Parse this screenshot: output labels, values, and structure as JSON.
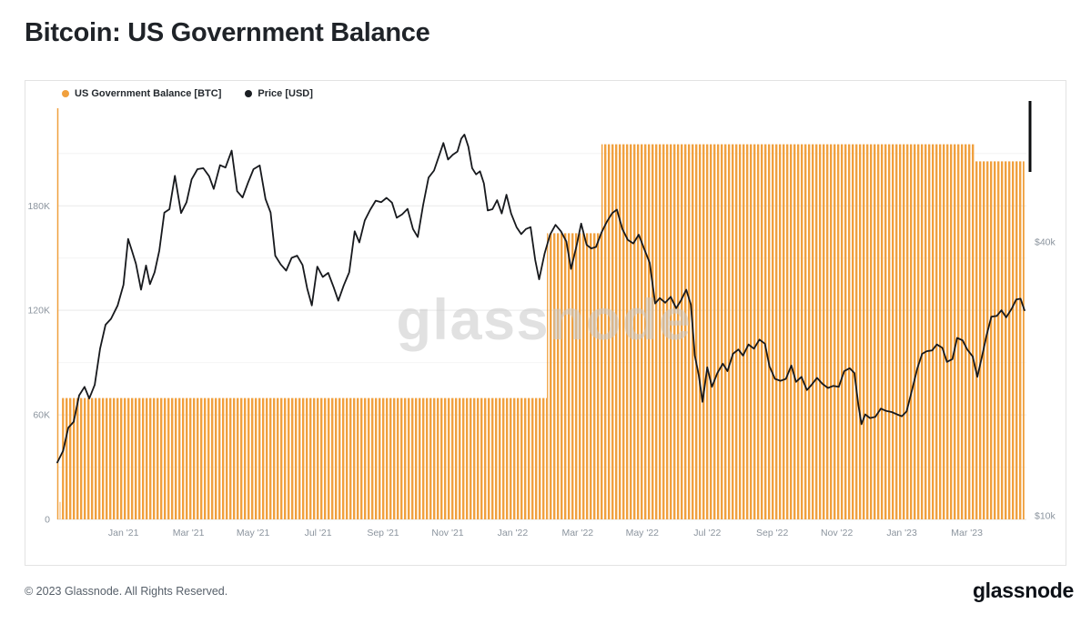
{
  "header": {
    "title": "Bitcoin: US Government Balance"
  },
  "watermark": "glassnode",
  "footer": {
    "copyright": "© 2023 Glassnode. All Rights Reserved.",
    "brand": "glassnode"
  },
  "legend": {
    "items": [
      {
        "label": "US Government Balance [BTC]",
        "color": "#F0A03E"
      },
      {
        "label": "Price [USD]",
        "color": "#1b1e23"
      }
    ]
  },
  "chart_data": {
    "type": "mixed",
    "title": "Bitcoin: US Government Balance",
    "x_axis": {
      "range": [
        2020.83,
        2023.32
      ],
      "ticks": [
        {
          "x": 2021.0,
          "label": "Jan '21"
        },
        {
          "x": 2021.167,
          "label": "Mar '21"
        },
        {
          "x": 2021.333,
          "label": "May '21"
        },
        {
          "x": 2021.5,
          "label": "Jul '21"
        },
        {
          "x": 2021.667,
          "label": "Sep '21"
        },
        {
          "x": 2021.833,
          "label": "Nov '21"
        },
        {
          "x": 2022.0,
          "label": "Jan '22"
        },
        {
          "x": 2022.167,
          "label": "Mar '22"
        },
        {
          "x": 2022.333,
          "label": "May '22"
        },
        {
          "x": 2022.5,
          "label": "Jul '22"
        },
        {
          "x": 2022.667,
          "label": "Sep '22"
        },
        {
          "x": 2022.833,
          "label": "Nov '22"
        },
        {
          "x": 2023.0,
          "label": "Jan '23"
        },
        {
          "x": 2023.167,
          "label": "Mar '23"
        }
      ]
    },
    "left_axis": {
      "label": "US Government Balance [BTC]",
      "range": [
        0,
        236000
      ],
      "ticks": [
        {
          "v": 0,
          "label": "0"
        },
        {
          "v": 60000,
          "label": "60K"
        },
        {
          "v": 120000,
          "label": "120K"
        },
        {
          "v": 180000,
          "label": "180K"
        }
      ],
      "gridlines_major": [
        60000,
        120000,
        180000
      ],
      "gridlines_minor": [
        30000,
        90000,
        150000,
        210000
      ]
    },
    "right_axis": {
      "label": "Price [USD]",
      "scale": "log",
      "range": [
        9817,
        78700
      ],
      "ticks": [
        {
          "v": 10000,
          "label": "$10k"
        },
        {
          "v": 40000,
          "label": "$40k"
        }
      ]
    },
    "series": [
      {
        "name": "US Government Balance [BTC]",
        "type": "step-bars",
        "axis": "left",
        "color": "#F0A03E",
        "steps": [
          {
            "x": 2020.836,
            "v": 10000
          },
          {
            "x": 2020.842,
            "v": 69640
          },
          {
            "x": 2022.088,
            "v": 164283
          },
          {
            "x": 2022.228,
            "v": 215338
          },
          {
            "x": 2023.187,
            "v": 205515
          }
        ],
        "end_x": 2023.315
      },
      {
        "name": "Price [USD]",
        "type": "line",
        "axis": "right",
        "color": "#17191d",
        "points": [
          [
            2020.83,
            13100
          ],
          [
            2020.845,
            13900
          ],
          [
            2020.858,
            15600
          ],
          [
            2020.872,
            16100
          ],
          [
            2020.886,
            18400
          ],
          [
            2020.9,
            19200
          ],
          [
            2020.912,
            18100
          ],
          [
            2020.926,
            19400
          ],
          [
            2020.94,
            23300
          ],
          [
            2020.954,
            26300
          ],
          [
            2020.968,
            27100
          ],
          [
            2020.985,
            29000
          ],
          [
            2021.0,
            32200
          ],
          [
            2021.012,
            40600
          ],
          [
            2021.022,
            38200
          ],
          [
            2021.032,
            35800
          ],
          [
            2021.045,
            31400
          ],
          [
            2021.058,
            35500
          ],
          [
            2021.068,
            32300
          ],
          [
            2021.08,
            34300
          ],
          [
            2021.092,
            38300
          ],
          [
            2021.105,
            46400
          ],
          [
            2021.118,
            47200
          ],
          [
            2021.132,
            55900
          ],
          [
            2021.148,
            46300
          ],
          [
            2021.162,
            48900
          ],
          [
            2021.175,
            54900
          ],
          [
            2021.19,
            57800
          ],
          [
            2021.205,
            58100
          ],
          [
            2021.22,
            55800
          ],
          [
            2021.232,
            52300
          ],
          [
            2021.248,
            59000
          ],
          [
            2021.262,
            58300
          ],
          [
            2021.278,
            63500
          ],
          [
            2021.292,
            51700
          ],
          [
            2021.306,
            50100
          ],
          [
            2021.32,
            54000
          ],
          [
            2021.334,
            57800
          ],
          [
            2021.35,
            58900
          ],
          [
            2021.365,
            49700
          ],
          [
            2021.378,
            46400
          ],
          [
            2021.39,
            37300
          ],
          [
            2021.404,
            35700
          ],
          [
            2021.418,
            34600
          ],
          [
            2021.432,
            36900
          ],
          [
            2021.446,
            37300
          ],
          [
            2021.46,
            35600
          ],
          [
            2021.472,
            31600
          ],
          [
            2021.484,
            29000
          ],
          [
            2021.498,
            35300
          ],
          [
            2021.512,
            33500
          ],
          [
            2021.526,
            34200
          ],
          [
            2021.54,
            31800
          ],
          [
            2021.552,
            29700
          ],
          [
            2021.566,
            32100
          ],
          [
            2021.58,
            34300
          ],
          [
            2021.594,
            42200
          ],
          [
            2021.606,
            39900
          ],
          [
            2021.62,
            44600
          ],
          [
            2021.634,
            47100
          ],
          [
            2021.648,
            49300
          ],
          [
            2021.662,
            48900
          ],
          [
            2021.676,
            50000
          ],
          [
            2021.69,
            48800
          ],
          [
            2021.702,
            45200
          ],
          [
            2021.716,
            46000
          ],
          [
            2021.73,
            47300
          ],
          [
            2021.744,
            42700
          ],
          [
            2021.756,
            41000
          ],
          [
            2021.77,
            48200
          ],
          [
            2021.784,
            55400
          ],
          [
            2021.798,
            57400
          ],
          [
            2021.81,
            61600
          ],
          [
            2021.822,
            66000
          ],
          [
            2021.834,
            60700
          ],
          [
            2021.846,
            62200
          ],
          [
            2021.858,
            63200
          ],
          [
            2021.868,
            67500
          ],
          [
            2021.876,
            68900
          ],
          [
            2021.886,
            64800
          ],
          [
            2021.896,
            58100
          ],
          [
            2021.906,
            56300
          ],
          [
            2021.916,
            57200
          ],
          [
            2021.926,
            53800
          ],
          [
            2021.936,
            46900
          ],
          [
            2021.948,
            47200
          ],
          [
            2021.96,
            49400
          ],
          [
            2021.972,
            46200
          ],
          [
            2021.984,
            50800
          ],
          [
            2021.996,
            46200
          ],
          [
            2022.01,
            43100
          ],
          [
            2022.022,
            41600
          ],
          [
            2022.034,
            42700
          ],
          [
            2022.046,
            43100
          ],
          [
            2022.058,
            36500
          ],
          [
            2022.068,
            33100
          ],
          [
            2022.082,
            37700
          ],
          [
            2022.096,
            41500
          ],
          [
            2022.11,
            43600
          ],
          [
            2022.124,
            42200
          ],
          [
            2022.138,
            40100
          ],
          [
            2022.15,
            34900
          ],
          [
            2022.164,
            39200
          ],
          [
            2022.176,
            43900
          ],
          [
            2022.19,
            39400
          ],
          [
            2022.202,
            38700
          ],
          [
            2022.214,
            39000
          ],
          [
            2022.228,
            41900
          ],
          [
            2022.242,
            44300
          ],
          [
            2022.256,
            46300
          ],
          [
            2022.268,
            47100
          ],
          [
            2022.282,
            42700
          ],
          [
            2022.296,
            40400
          ],
          [
            2022.31,
            39700
          ],
          [
            2022.324,
            41500
          ],
          [
            2022.338,
            38600
          ],
          [
            2022.352,
            36000
          ],
          [
            2022.366,
            29300
          ],
          [
            2022.378,
            30100
          ],
          [
            2022.392,
            29400
          ],
          [
            2022.406,
            30300
          ],
          [
            2022.42,
            28600
          ],
          [
            2022.432,
            29700
          ],
          [
            2022.446,
            31400
          ],
          [
            2022.458,
            29100
          ],
          [
            2022.468,
            22500
          ],
          [
            2022.478,
            20400
          ],
          [
            2022.488,
            17800
          ],
          [
            2022.5,
            21200
          ],
          [
            2022.512,
            19200
          ],
          [
            2022.526,
            20600
          ],
          [
            2022.54,
            21600
          ],
          [
            2022.552,
            20800
          ],
          [
            2022.566,
            22700
          ],
          [
            2022.58,
            23200
          ],
          [
            2022.592,
            22500
          ],
          [
            2022.606,
            23800
          ],
          [
            2022.62,
            23300
          ],
          [
            2022.634,
            24400
          ],
          [
            2022.648,
            23900
          ],
          [
            2022.66,
            21300
          ],
          [
            2022.674,
            20000
          ],
          [
            2022.688,
            19800
          ],
          [
            2022.702,
            20000
          ],
          [
            2022.716,
            21400
          ],
          [
            2022.728,
            19700
          ],
          [
            2022.742,
            20200
          ],
          [
            2022.756,
            18900
          ],
          [
            2022.768,
            19400
          ],
          [
            2022.782,
            20100
          ],
          [
            2022.796,
            19500
          ],
          [
            2022.81,
            19100
          ],
          [
            2022.824,
            19300
          ],
          [
            2022.838,
            19200
          ],
          [
            2022.852,
            20800
          ],
          [
            2022.866,
            21100
          ],
          [
            2022.878,
            20600
          ],
          [
            2022.888,
            17600
          ],
          [
            2022.896,
            15900
          ],
          [
            2022.906,
            16700
          ],
          [
            2022.918,
            16400
          ],
          [
            2022.932,
            16500
          ],
          [
            2022.946,
            17200
          ],
          [
            2022.96,
            17000
          ],
          [
            2022.974,
            16900
          ],
          [
            2022.988,
            16700
          ],
          [
            2023.0,
            16550
          ],
          [
            2023.012,
            16950
          ],
          [
            2023.026,
            18900
          ],
          [
            2023.04,
            21100
          ],
          [
            2023.052,
            22700
          ],
          [
            2023.064,
            23000
          ],
          [
            2023.078,
            23100
          ],
          [
            2023.09,
            23800
          ],
          [
            2023.104,
            23400
          ],
          [
            2023.116,
            21800
          ],
          [
            2023.13,
            22100
          ],
          [
            2023.142,
            24600
          ],
          [
            2023.156,
            24300
          ],
          [
            2023.168,
            23200
          ],
          [
            2023.182,
            22400
          ],
          [
            2023.194,
            20200
          ],
          [
            2023.206,
            22400
          ],
          [
            2023.218,
            25000
          ],
          [
            2023.23,
            27400
          ],
          [
            2023.244,
            27500
          ],
          [
            2023.256,
            28300
          ],
          [
            2023.268,
            27300
          ],
          [
            2023.282,
            28500
          ],
          [
            2023.294,
            29900
          ],
          [
            2023.305,
            30000
          ],
          [
            2023.315,
            28300
          ]
        ]
      }
    ]
  }
}
